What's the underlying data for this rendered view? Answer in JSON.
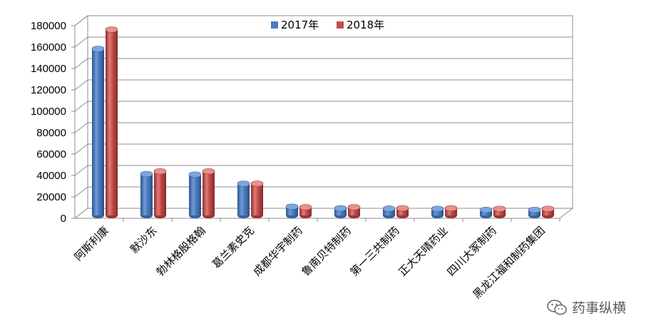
{
  "chart_data": {
    "type": "bar",
    "categories": [
      "阿斯利康",
      "默沙东",
      "勃林格殷格翰",
      "葛兰素史克",
      "成都华宇制药",
      "鲁南贝特制药",
      "第一三共制药",
      "正大天晴药业",
      "四川大冢制药",
      "黑龙江福和制药集团"
    ],
    "series": [
      {
        "name": "2017年",
        "values": [
          157000,
          40000,
          39500,
          31000,
          9500,
          8000,
          7700,
          7500,
          6500,
          6500
        ],
        "color": "#4a7ebb"
      },
      {
        "name": "2018年",
        "values": [
          175000,
          42500,
          42500,
          31000,
          9000,
          9000,
          8000,
          8000,
          7500,
          7500
        ],
        "color": "#c0504d"
      }
    ],
    "y_ticks": [
      "0",
      "20000",
      "40000",
      "60000",
      "80000",
      "100000",
      "120000",
      "140000",
      "160000",
      "180000"
    ],
    "ylim": [
      0,
      180000
    ],
    "grid": true,
    "legend_position": "top-center",
    "style": "3d-cylinder"
  },
  "watermark": {
    "text": "药事纵横",
    "icon": "wechat-icon"
  }
}
